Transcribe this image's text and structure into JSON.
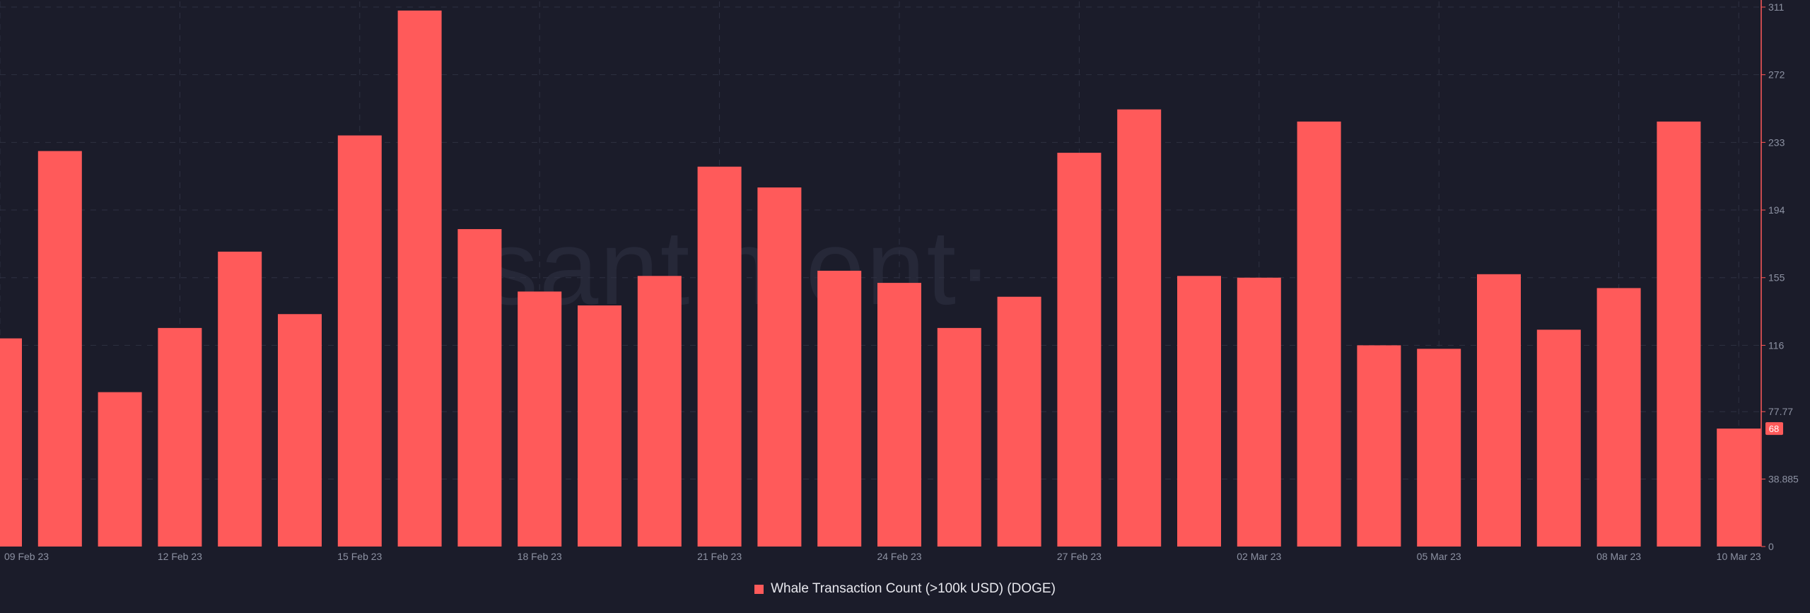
{
  "watermark": "·santiment·",
  "chart_data": {
    "type": "bar",
    "series": [
      {
        "name": "Whale Transaction Count (>100k USD) (DOGE)",
        "color": "#ff5a5a",
        "values": [
          120,
          228,
          89,
          126,
          170,
          134,
          237,
          309,
          183,
          147,
          139,
          156,
          219,
          207,
          159,
          152,
          126,
          144,
          227,
          252,
          156,
          155,
          245,
          116,
          114,
          157,
          125,
          149,
          245,
          68
        ]
      }
    ],
    "x_tick_labels": [
      {
        "index": 0,
        "label": "09 Feb 23"
      },
      {
        "index": 3,
        "label": "12 Feb 23"
      },
      {
        "index": 6,
        "label": "15 Feb 23"
      },
      {
        "index": 9,
        "label": "18 Feb 23"
      },
      {
        "index": 12,
        "label": "21 Feb 23"
      },
      {
        "index": 15,
        "label": "24 Feb 23"
      },
      {
        "index": 18,
        "label": "27 Feb 23"
      },
      {
        "index": 21,
        "label": "02 Mar 23"
      },
      {
        "index": 24,
        "label": "05 Mar 23"
      },
      {
        "index": 27,
        "label": "08 Mar 23"
      },
      {
        "index": 29,
        "label": "10 Mar 23"
      }
    ],
    "y_ticks": [
      0,
      38.885,
      77.77,
      116,
      155,
      194,
      233,
      272,
      311
    ],
    "y_tick_labels": [
      "0",
      "38.885",
      "77.77",
      "116",
      "155",
      "194",
      "233",
      "272",
      "311"
    ],
    "ylim": [
      0,
      311
    ],
    "last_value_label": "68",
    "grid": true,
    "legend_position": "bottom-center",
    "colors": {
      "background": "#1b1c2a",
      "grid": "#2e3142",
      "axis": "#ff5a5a",
      "tick_text": "#8d92a3"
    }
  }
}
